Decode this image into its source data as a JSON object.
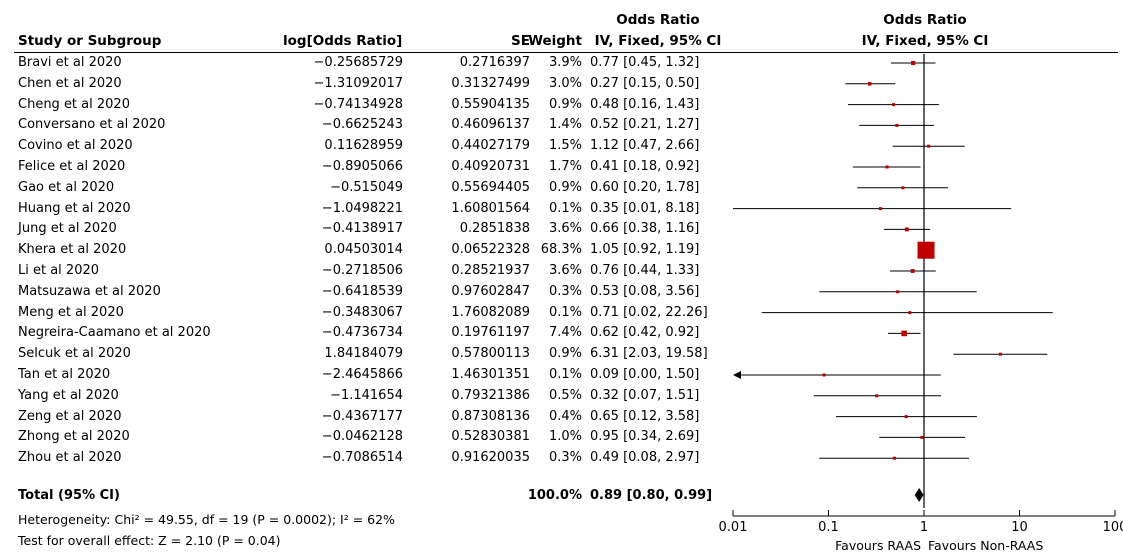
{
  "headers": {
    "study": "Study or Subgroup",
    "logor": "log[Odds Ratio]",
    "se": "SE",
    "weight": "Weight",
    "or_top": "Odds Ratio",
    "or_sub": "IV, Fixed, 95% CI",
    "plot_top": "Odds Ratio",
    "plot_sub": "IV, Fixed, 95% CI"
  },
  "total": {
    "label": "Total (95% CI)",
    "weight": "100.0%",
    "ci_text": "0.89 [0.80, 0.99]"
  },
  "footer": {
    "heterogeneity": "Heterogeneity: Chi² = 49.55, df = 19 (P = 0.0002); I² = 62%",
    "overall": "Test for overall effect: Z = 2.10 (P = 0.04)",
    "favours_left": "Favours RAAS",
    "favours_right": "Favours Non-RAAS"
  },
  "chart_data": {
    "type": "forest",
    "scale": "log",
    "xlim": [
      0.01,
      100
    ],
    "ticks": [
      "0.01",
      "0.1",
      "1",
      "10",
      "100"
    ],
    "tick_values": [
      0.01,
      0.1,
      1,
      10,
      100
    ],
    "null_value": 1,
    "colors": {
      "marker": "#c00000",
      "line": "#000000"
    },
    "studies": [
      {
        "name": "Bravi et al 2020",
        "logor": "−0.25685729",
        "se": "0.2716397",
        "weight": "3.9%",
        "ci_text": "0.77 [0.45, 1.32]",
        "or": 0.77,
        "lo": 0.45,
        "hi": 1.32,
        "w": 3.9
      },
      {
        "name": "Chen et al 2020",
        "logor": "−1.31092017",
        "se": "0.31327499",
        "weight": "3.0%",
        "ci_text": "0.27 [0.15, 0.50]",
        "or": 0.27,
        "lo": 0.15,
        "hi": 0.5,
        "w": 3.0
      },
      {
        "name": "Cheng et al 2020",
        "logor": "−0.74134928",
        "se": "0.55904135",
        "weight": "0.9%",
        "ci_text": "0.48 [0.16, 1.43]",
        "or": 0.48,
        "lo": 0.16,
        "hi": 1.43,
        "w": 0.9
      },
      {
        "name": "Conversano et al 2020",
        "logor": "−0.6625243",
        "se": "0.46096137",
        "weight": "1.4%",
        "ci_text": "0.52 [0.21, 1.27]",
        "or": 0.52,
        "lo": 0.21,
        "hi": 1.27,
        "w": 1.4
      },
      {
        "name": "Covino et al 2020",
        "logor": "0.11628959",
        "se": "0.44027179",
        "weight": "1.5%",
        "ci_text": "1.12 [0.47, 2.66]",
        "or": 1.12,
        "lo": 0.47,
        "hi": 2.66,
        "w": 1.5
      },
      {
        "name": "Felice et al 2020",
        "logor": "−0.8905066",
        "se": "0.40920731",
        "weight": "1.7%",
        "ci_text": "0.41 [0.18, 0.92]",
        "or": 0.41,
        "lo": 0.18,
        "hi": 0.92,
        "w": 1.7
      },
      {
        "name": "Gao et al 2020",
        "logor": "−0.515049",
        "se": "0.55694405",
        "weight": "0.9%",
        "ci_text": "0.60 [0.20, 1.78]",
        "or": 0.6,
        "lo": 0.2,
        "hi": 1.78,
        "w": 0.9
      },
      {
        "name": "Huang et al 2020",
        "logor": "−1.0498221",
        "se": "1.60801564",
        "weight": "0.1%",
        "ci_text": "0.35 [0.01, 8.18]",
        "or": 0.35,
        "lo": 0.01,
        "hi": 8.18,
        "w": 0.1
      },
      {
        "name": "Jung et al 2020",
        "logor": "−0.4138917",
        "se": "0.2851838",
        "weight": "3.6%",
        "ci_text": "0.66 [0.38, 1.16]",
        "or": 0.66,
        "lo": 0.38,
        "hi": 1.16,
        "w": 3.6
      },
      {
        "name": "Khera et al 2020",
        "logor": "0.04503014",
        "se": "0.06522328",
        "weight": "68.3%",
        "ci_text": "1.05 [0.92, 1.19]",
        "or": 1.05,
        "lo": 0.92,
        "hi": 1.19,
        "w": 68.3
      },
      {
        "name": "Li et al 2020",
        "logor": "−0.2718506",
        "se": "0.28521937",
        "weight": "3.6%",
        "ci_text": "0.76 [0.44, 1.33]",
        "or": 0.76,
        "lo": 0.44,
        "hi": 1.33,
        "w": 3.6
      },
      {
        "name": "Matsuzawa et al 2020",
        "logor": "−0.6418539",
        "se": "0.97602847",
        "weight": "0.3%",
        "ci_text": "0.53 [0.08, 3.56]",
        "or": 0.53,
        "lo": 0.08,
        "hi": 3.56,
        "w": 0.3
      },
      {
        "name": "Meng et al 2020",
        "logor": "−0.3483067",
        "se": "1.76082089",
        "weight": "0.1%",
        "ci_text": "0.71 [0.02, 22.26]",
        "or": 0.71,
        "lo": 0.02,
        "hi": 22.26,
        "w": 0.1
      },
      {
        "name": "Negreira-Caamano et al 2020",
        "logor": "−0.4736734",
        "se": "0.19761197",
        "weight": "7.4%",
        "ci_text": "0.62 [0.42, 0.92]",
        "or": 0.62,
        "lo": 0.42,
        "hi": 0.92,
        "w": 7.4
      },
      {
        "name": "Selcuk et al 2020",
        "logor": "1.84184079",
        "se": "0.57800113",
        "weight": "0.9%",
        "ci_text": "6.31 [2.03, 19.58]",
        "or": 6.31,
        "lo": 2.03,
        "hi": 19.58,
        "w": 0.9
      },
      {
        "name": "Tan et al 2020",
        "logor": "−2.4645866",
        "se": "1.46301351",
        "weight": "0.1%",
        "ci_text": "0.09 [0.00, 1.50]",
        "or": 0.09,
        "lo": 0.0,
        "hi": 1.5,
        "w": 0.1
      },
      {
        "name": "Yang et al 2020",
        "logor": "−1.141654",
        "se": "0.79321386",
        "weight": "0.5%",
        "ci_text": "0.32 [0.07, 1.51]",
        "or": 0.32,
        "lo": 0.07,
        "hi": 1.51,
        "w": 0.5
      },
      {
        "name": "Zeng et al 2020",
        "logor": "−0.4367177",
        "se": "0.87308136",
        "weight": "0.4%",
        "ci_text": "0.65 [0.12, 3.58]",
        "or": 0.65,
        "lo": 0.12,
        "hi": 3.58,
        "w": 0.4
      },
      {
        "name": "Zhong et al 2020",
        "logor": "−0.0462128",
        "se": "0.52830381",
        "weight": "1.0%",
        "ci_text": "0.95 [0.34, 2.69]",
        "or": 0.95,
        "lo": 0.34,
        "hi": 2.69,
        "w": 1.0
      },
      {
        "name": "Zhou et al 2020",
        "logor": "−0.7086514",
        "se": "0.91620035",
        "weight": "0.3%",
        "ci_text": "0.49 [0.08, 2.97]",
        "or": 0.49,
        "lo": 0.08,
        "hi": 2.97,
        "w": 0.3
      }
    ],
    "pooled": {
      "or": 0.89,
      "lo": 0.8,
      "hi": 0.99
    }
  }
}
